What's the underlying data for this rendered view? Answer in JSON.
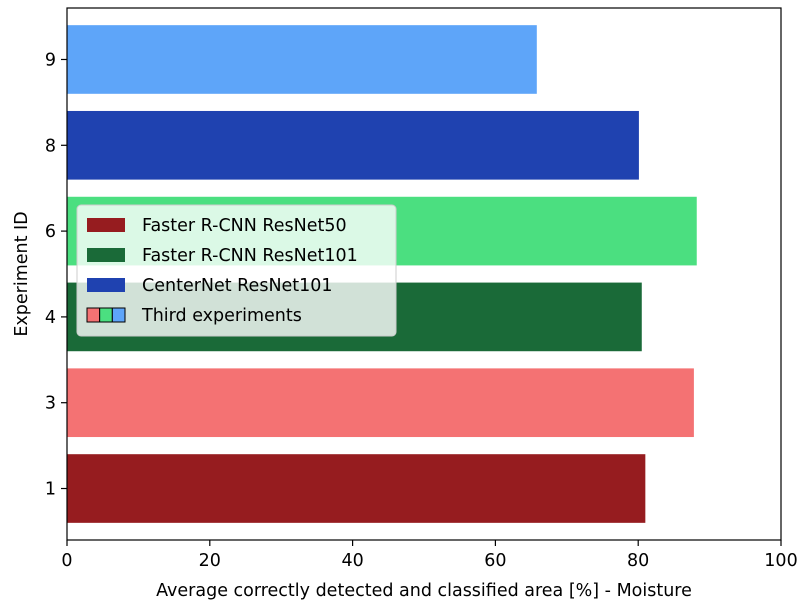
{
  "chart_data": {
    "type": "bar",
    "orientation": "horizontal",
    "title": "",
    "xlabel": "Average correctly detected and classified area [%] - Moisture",
    "ylabel": "Experiment ID",
    "xlim": [
      0,
      100
    ],
    "xticks": [
      "0",
      "20",
      "40",
      "60",
      "80",
      "100"
    ],
    "categories": [
      "1",
      "3",
      "4",
      "6",
      "8",
      "9"
    ],
    "values": [
      81,
      87.8,
      80.5,
      88.2,
      80.1,
      65.8
    ],
    "bar_colors": [
      "#961c1f",
      "#f47273",
      "#1a6a38",
      "#4bdf80",
      "#1f42b0",
      "#5ea5f9"
    ],
    "grid": false,
    "legend": {
      "placement": "center-left",
      "entries": [
        {
          "label": "Faster R-CNN ResNet50",
          "colors": [
            "#961c1f"
          ]
        },
        {
          "label": "Faster R-CNN ResNet101",
          "colors": [
            "#1a6a38"
          ]
        },
        {
          "label": "CenterNet ResNet101",
          "colors": [
            "#1f42b0"
          ]
        },
        {
          "label": "Third experiments",
          "colors": [
            "#f47273",
            "#4bdf80",
            "#5ea5f9"
          ]
        }
      ]
    }
  }
}
